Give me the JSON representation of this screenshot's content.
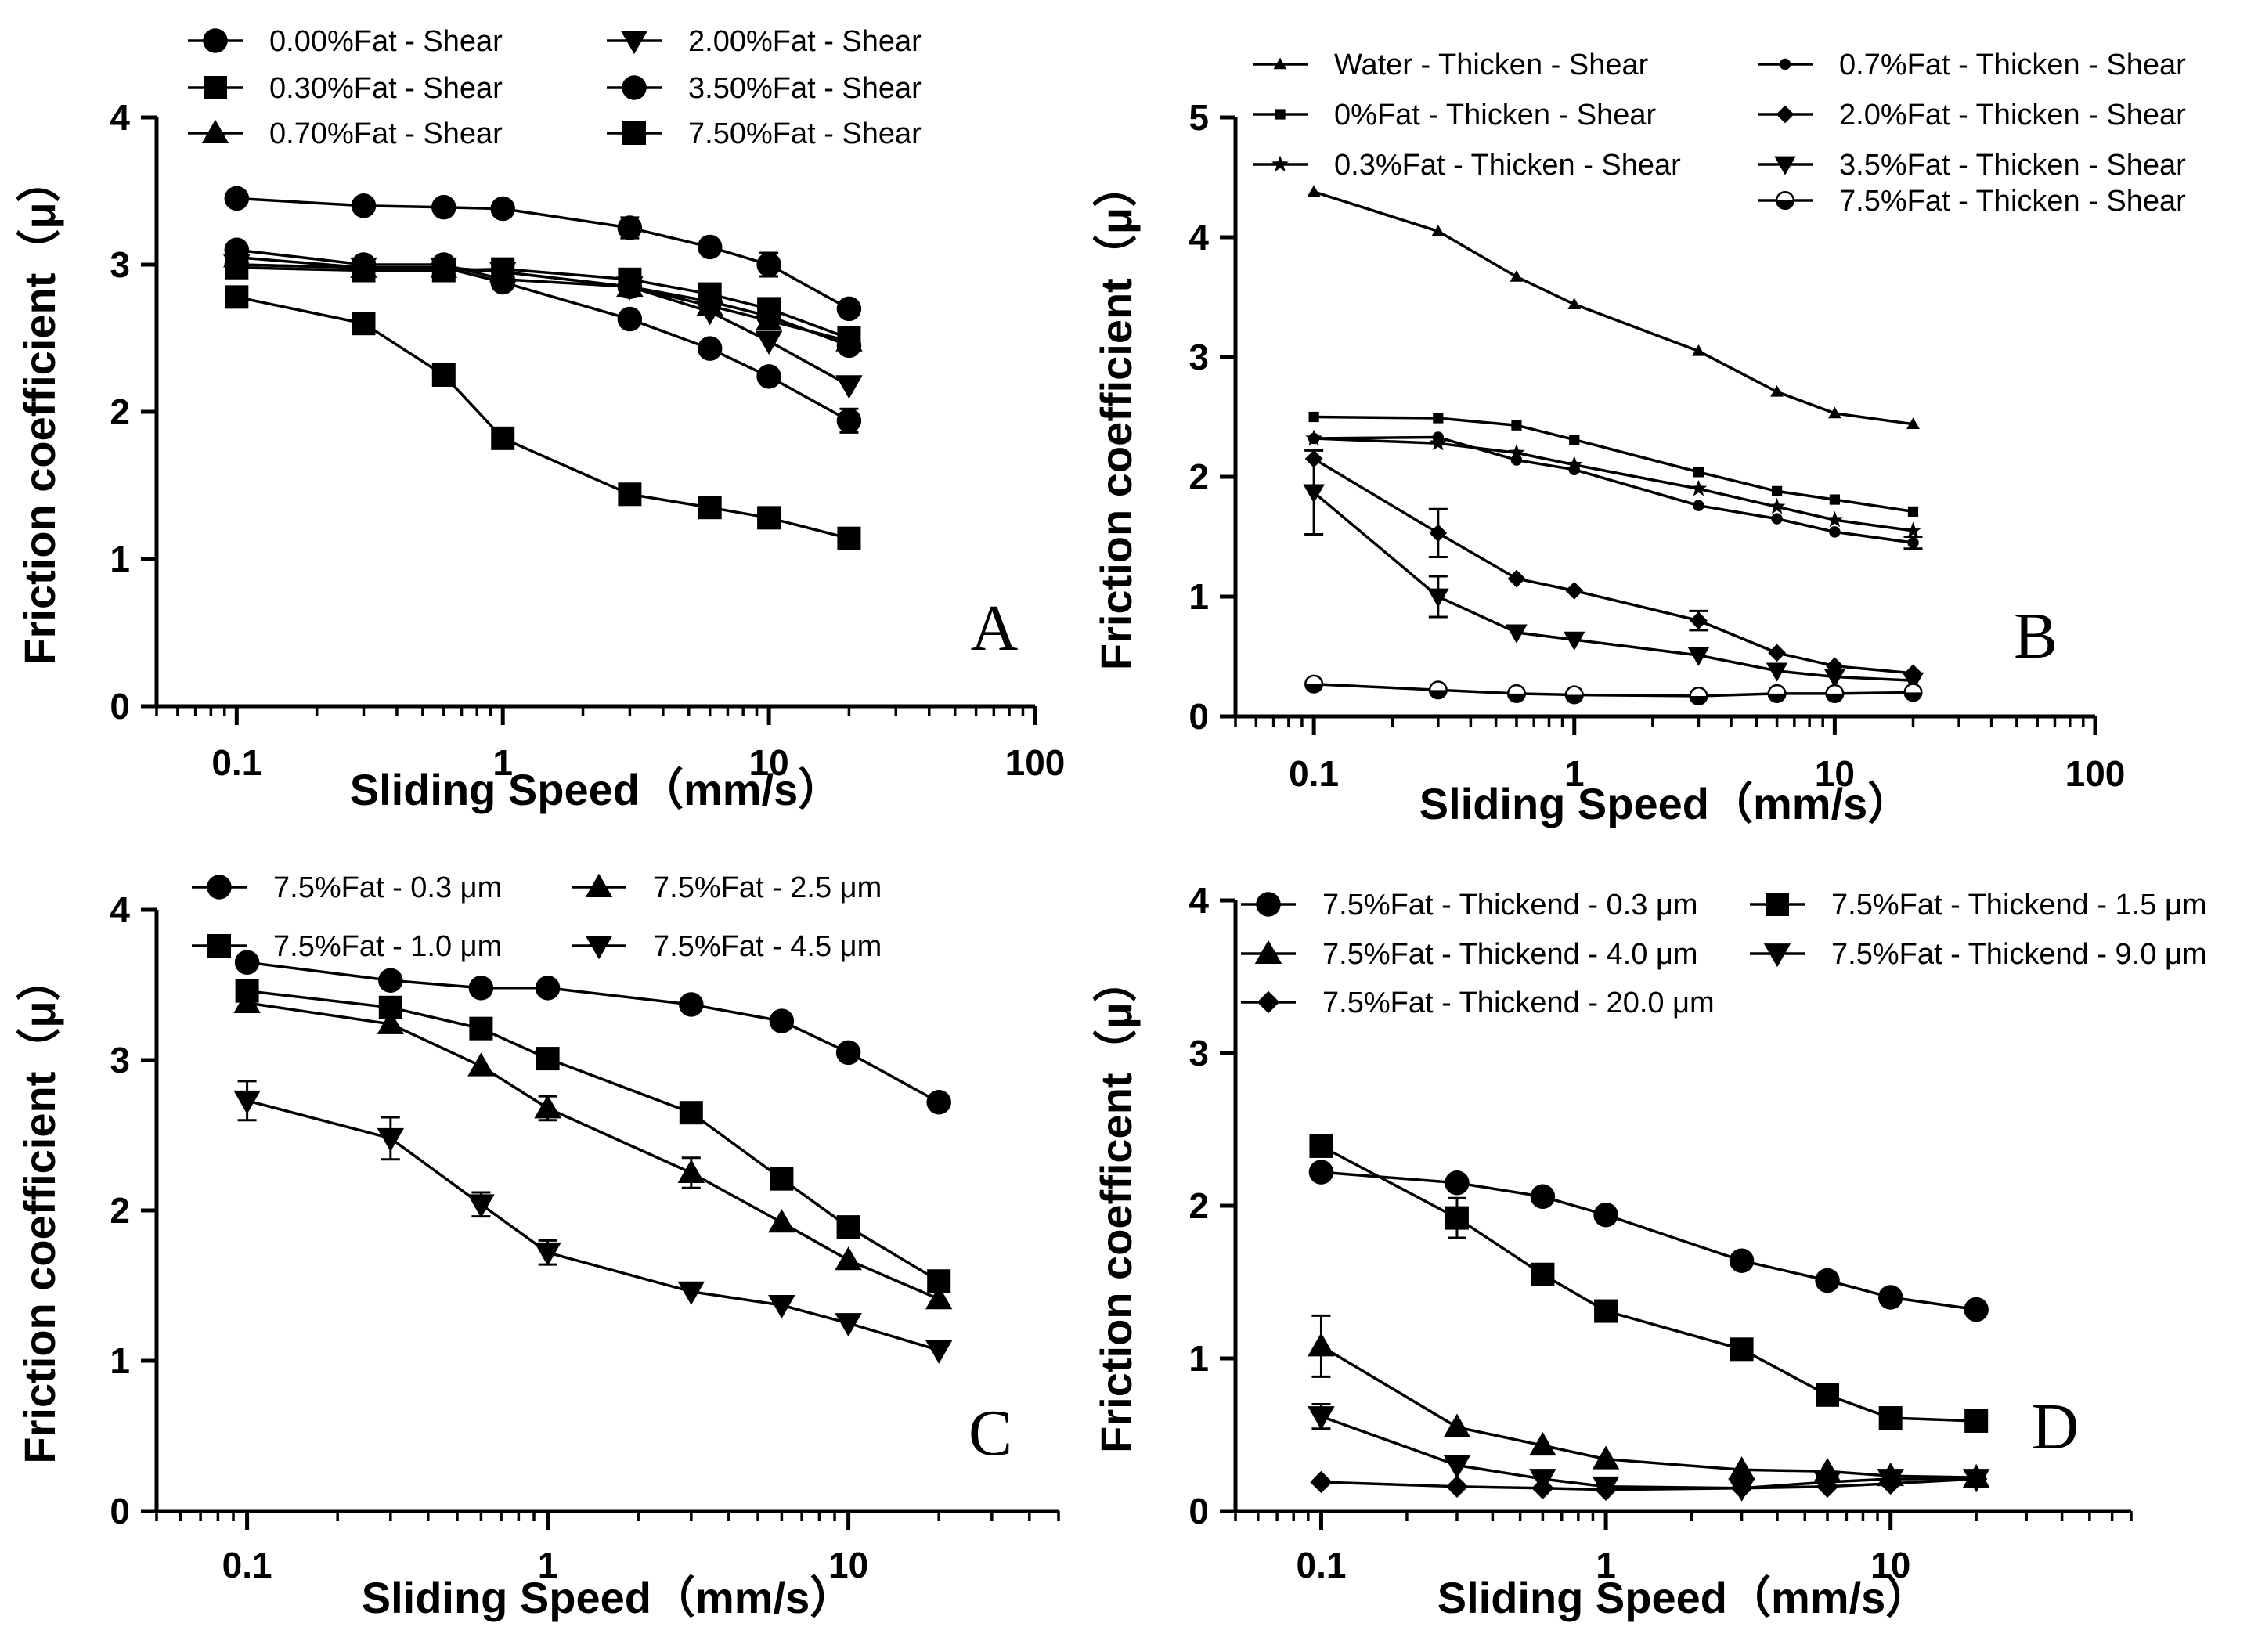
{
  "figure": {
    "background": "#ffffff",
    "ink": "#000000"
  },
  "chart_data": [
    {
      "id": "A",
      "type": "line",
      "panel_label": "A",
      "xlabel": "Sliding Speed（mm/s）",
      "ylabel": "Friction coefficient（μ）",
      "xscale": "log",
      "xlim": [
        0.05,
        100
      ],
      "ylim": [
        0,
        4
      ],
      "xticks": [
        0.1,
        1,
        10,
        100
      ],
      "xtick_labels": [
        "0.1",
        "1",
        "10",
        "100"
      ],
      "yticks": [
        0,
        1,
        2,
        3,
        4
      ],
      "ytick_labels": [
        "0",
        "1",
        "2",
        "3",
        "4"
      ],
      "legend_placement": "top",
      "x": [
        0.1,
        0.3,
        0.6,
        1,
        3,
        6,
        10,
        20
      ],
      "series": [
        {
          "name": "0.00%Fat - Shear",
          "marker": "circle",
          "values": [
            3.1,
            3.0,
            3.0,
            2.9,
            2.85,
            2.75,
            2.65,
            2.45
          ],
          "err": [
            0,
            0,
            0,
            0,
            0,
            0,
            0,
            0
          ]
        },
        {
          "name": "0.30%Fat - Shear",
          "marker": "square",
          "values": [
            2.98,
            2.96,
            2.96,
            2.97,
            2.9,
            2.8,
            2.7,
            2.5
          ],
          "err": [
            0,
            0,
            0,
            0,
            0,
            0,
            0.06,
            0.05
          ]
        },
        {
          "name": "0.70%Fat - Shear",
          "marker": "triangle-up",
          "values": [
            3.05,
            2.98,
            2.98,
            2.95,
            2.85,
            2.72,
            2.62,
            2.48
          ],
          "err": [
            0,
            0,
            0,
            0,
            0,
            0,
            0,
            0
          ]
        },
        {
          "name": "2.00%Fat - Shear",
          "marker": "triangle-down",
          "values": [
            3.0,
            2.98,
            2.98,
            2.95,
            2.85,
            2.68,
            2.48,
            2.18
          ],
          "err": [
            0,
            0,
            0,
            0,
            0,
            0,
            0,
            0
          ]
        },
        {
          "name": "3.50%Fat - Shear",
          "marker": "circle",
          "values": [
            3.45,
            3.4,
            3.39,
            3.38,
            3.25,
            3.12,
            3.0,
            2.7
          ],
          "err": [
            0,
            0,
            0,
            0,
            0.07,
            0,
            0.08,
            0
          ]
        },
        {
          "name": "3.50%Fat - Shear (2)",
          "display_name": "",
          "marker": "circle",
          "legend": false,
          "values": [
            3.0,
            2.98,
            2.98,
            2.88,
            2.63,
            2.43,
            2.24,
            1.94
          ],
          "err": [
            0,
            0,
            0,
            0,
            0,
            0,
            0,
            0.08
          ]
        },
        {
          "name": "7.50%Fat - Shear",
          "marker": "square",
          "values": [
            2.78,
            2.6,
            2.25,
            1.82,
            1.44,
            1.35,
            1.28,
            1.14
          ],
          "err": [
            0,
            0,
            0,
            0,
            0,
            0,
            0,
            0
          ]
        }
      ]
    },
    {
      "id": "B",
      "type": "line",
      "panel_label": "B",
      "xlabel": "Sliding Speed（mm/s）",
      "ylabel": "Friction coefficient（μ）",
      "xscale": "log",
      "xlim": [
        0.05,
        100
      ],
      "ylim": [
        0,
        5
      ],
      "xticks": [
        0.1,
        1,
        10,
        100
      ],
      "xtick_labels": [
        "0.1",
        "1",
        "10",
        "100"
      ],
      "yticks": [
        0,
        1,
        2,
        3,
        4,
        5
      ],
      "ytick_labels": [
        "0",
        "1",
        "2",
        "3",
        "4",
        "5"
      ],
      "legend_placement": "top",
      "x": [
        0.1,
        0.3,
        0.6,
        1,
        3,
        6,
        10,
        20
      ],
      "series": [
        {
          "name": "Water - Thicken - Shear",
          "marker": "triangle-small",
          "values": [
            4.38,
            4.05,
            3.67,
            3.44,
            3.05,
            2.71,
            2.53,
            2.44
          ],
          "err": [
            0,
            0,
            0,
            0,
            0,
            0,
            0,
            0
          ]
        },
        {
          "name": "0%Fat - Thicken - Shear",
          "marker": "square-small",
          "values": [
            2.5,
            2.49,
            2.43,
            2.31,
            2.04,
            1.88,
            1.81,
            1.71
          ],
          "err": [
            0,
            0,
            0,
            0,
            0,
            0,
            0,
            0
          ]
        },
        {
          "name": "0.3%Fat - Thicken - Shear",
          "marker": "star",
          "values": [
            2.32,
            2.28,
            2.2,
            2.1,
            1.9,
            1.75,
            1.64,
            1.55
          ],
          "err": [
            0,
            0,
            0,
            0,
            0,
            0,
            0,
            0
          ]
        },
        {
          "name": "0.7%Fat - Thicken - Shear",
          "marker": "circle-small",
          "values": [
            2.32,
            2.33,
            2.14,
            2.06,
            1.76,
            1.65,
            1.54,
            1.45
          ],
          "err": [
            0,
            0,
            0,
            0,
            0,
            0,
            0,
            0.05
          ]
        },
        {
          "name": "2.0%Fat - Thicken - Shear",
          "marker": "diamond",
          "values": [
            2.15,
            1.53,
            1.15,
            1.05,
            0.8,
            0.53,
            0.42,
            0.36
          ],
          "err": [
            0,
            0.2,
            0,
            0,
            0.08,
            0,
            0,
            0
          ]
        },
        {
          "name": "3.5%Fat - Thicken - Shear",
          "marker": "triangle-down",
          "values": [
            1.87,
            1.0,
            0.7,
            0.64,
            0.51,
            0.38,
            0.33,
            0.3
          ],
          "err": [
            0.35,
            0.17,
            0,
            0,
            0,
            0,
            0,
            0
          ]
        },
        {
          "name": "7.5%Fat - Thicken - Shear",
          "marker": "circle-open",
          "values": [
            0.27,
            0.22,
            0.19,
            0.18,
            0.17,
            0.19,
            0.19,
            0.2
          ],
          "err": [
            0,
            0,
            0,
            0,
            0,
            0,
            0,
            0
          ]
        }
      ]
    },
    {
      "id": "C",
      "type": "line",
      "panel_label": "C",
      "xlabel": "Sliding Speed（mm/s）",
      "ylabel": "Friction coefficient（μ）",
      "xscale": "log",
      "xlim": [
        0.05,
        50
      ],
      "ylim": [
        0,
        4
      ],
      "xticks": [
        0.1,
        1,
        10
      ],
      "xtick_labels": [
        "0.1",
        "1",
        "10"
      ],
      "yticks": [
        0,
        1,
        2,
        3,
        4
      ],
      "ytick_labels": [
        "0",
        "1",
        "2",
        "3",
        "4"
      ],
      "legend_placement": "top",
      "x": [
        0.1,
        0.3,
        0.6,
        1,
        3,
        6,
        10,
        20
      ],
      "series": [
        {
          "name": "7.5%Fat - 0.3 μm",
          "marker": "circle",
          "values": [
            3.65,
            3.53,
            3.48,
            3.48,
            3.37,
            3.26,
            3.05,
            2.72
          ],
          "err": [
            0,
            0,
            0,
            0,
            0,
            0,
            0,
            0
          ]
        },
        {
          "name": "7.5%Fat - 1.0 μm",
          "marker": "square",
          "values": [
            3.46,
            3.35,
            3.21,
            3.01,
            2.65,
            2.21,
            1.89,
            1.53
          ],
          "err": [
            0,
            0,
            0,
            0,
            0.06,
            0,
            0,
            0
          ]
        },
        {
          "name": "7.5%Fat - 2.5 μm",
          "marker": "triangle-up",
          "values": [
            3.38,
            3.24,
            2.96,
            2.68,
            2.25,
            1.92,
            1.67,
            1.41
          ],
          "err": [
            0,
            0,
            0,
            0.08,
            0.1,
            0,
            0,
            0
          ]
        },
        {
          "name": "7.5%Fat - 4.5 μm",
          "marker": "triangle-down",
          "values": [
            2.73,
            2.48,
            2.04,
            1.72,
            1.46,
            1.37,
            1.25,
            1.07
          ],
          "err": [
            0.13,
            0.14,
            0.08,
            0.08,
            0,
            0,
            0,
            0
          ]
        }
      ]
    },
    {
      "id": "D",
      "type": "line",
      "panel_label": "D",
      "xlabel": "Sliding Speed（mm/s）",
      "ylabel": "Friction coefficent（μ）",
      "xscale": "log",
      "xlim": [
        0.05,
        70
      ],
      "ylim": [
        0,
        4
      ],
      "xticks": [
        0.1,
        1,
        10
      ],
      "xtick_labels": [
        "0.1",
        "1",
        "10"
      ],
      "yticks": [
        0,
        1,
        2,
        3,
        4
      ],
      "ytick_labels": [
        "0",
        "1",
        "2",
        "3",
        "4"
      ],
      "legend_placement": "top",
      "x": [
        0.1,
        0.3,
        0.6,
        1,
        3,
        6,
        10,
        20
      ],
      "series": [
        {
          "name": "7.5%Fat - Thickend - 0.3 μm",
          "marker": "circle",
          "values": [
            2.22,
            2.15,
            2.06,
            1.94,
            1.64,
            1.51,
            1.4,
            1.32
          ],
          "err": [
            0,
            0,
            0,
            0,
            0,
            0,
            0,
            0
          ]
        },
        {
          "name": "7.5%Fat - Thickend - 1.5 μm",
          "marker": "square",
          "values": [
            2.39,
            1.92,
            1.55,
            1.31,
            1.06,
            0.76,
            0.61,
            0.59
          ],
          "err": [
            0,
            0.13,
            0,
            0,
            0,
            0,
            0,
            0
          ]
        },
        {
          "name": "7.5%Fat - Thickend - 4.0 μm",
          "marker": "triangle-up",
          "values": [
            1.08,
            0.55,
            0.43,
            0.34,
            0.27,
            0.26,
            0.23,
            0.22
          ],
          "err": [
            0.2,
            0,
            0,
            0,
            0,
            0,
            0,
            0
          ]
        },
        {
          "name": "7.5%Fat - Thickend - 9.0 μm",
          "marker": "triangle-down",
          "values": [
            0.62,
            0.3,
            0.21,
            0.16,
            0.15,
            0.19,
            0.21,
            0.21
          ],
          "err": [
            0.08,
            0,
            0,
            0,
            0,
            0,
            0,
            0
          ]
        },
        {
          "name": "7.5%Fat - Thickend - 20.0 μm",
          "marker": "diamond",
          "values": [
            0.19,
            0.16,
            0.15,
            0.14,
            0.15,
            0.16,
            0.18,
            0.21
          ],
          "err": [
            0,
            0,
            0,
            0,
            0,
            0,
            0,
            0
          ]
        }
      ]
    }
  ]
}
